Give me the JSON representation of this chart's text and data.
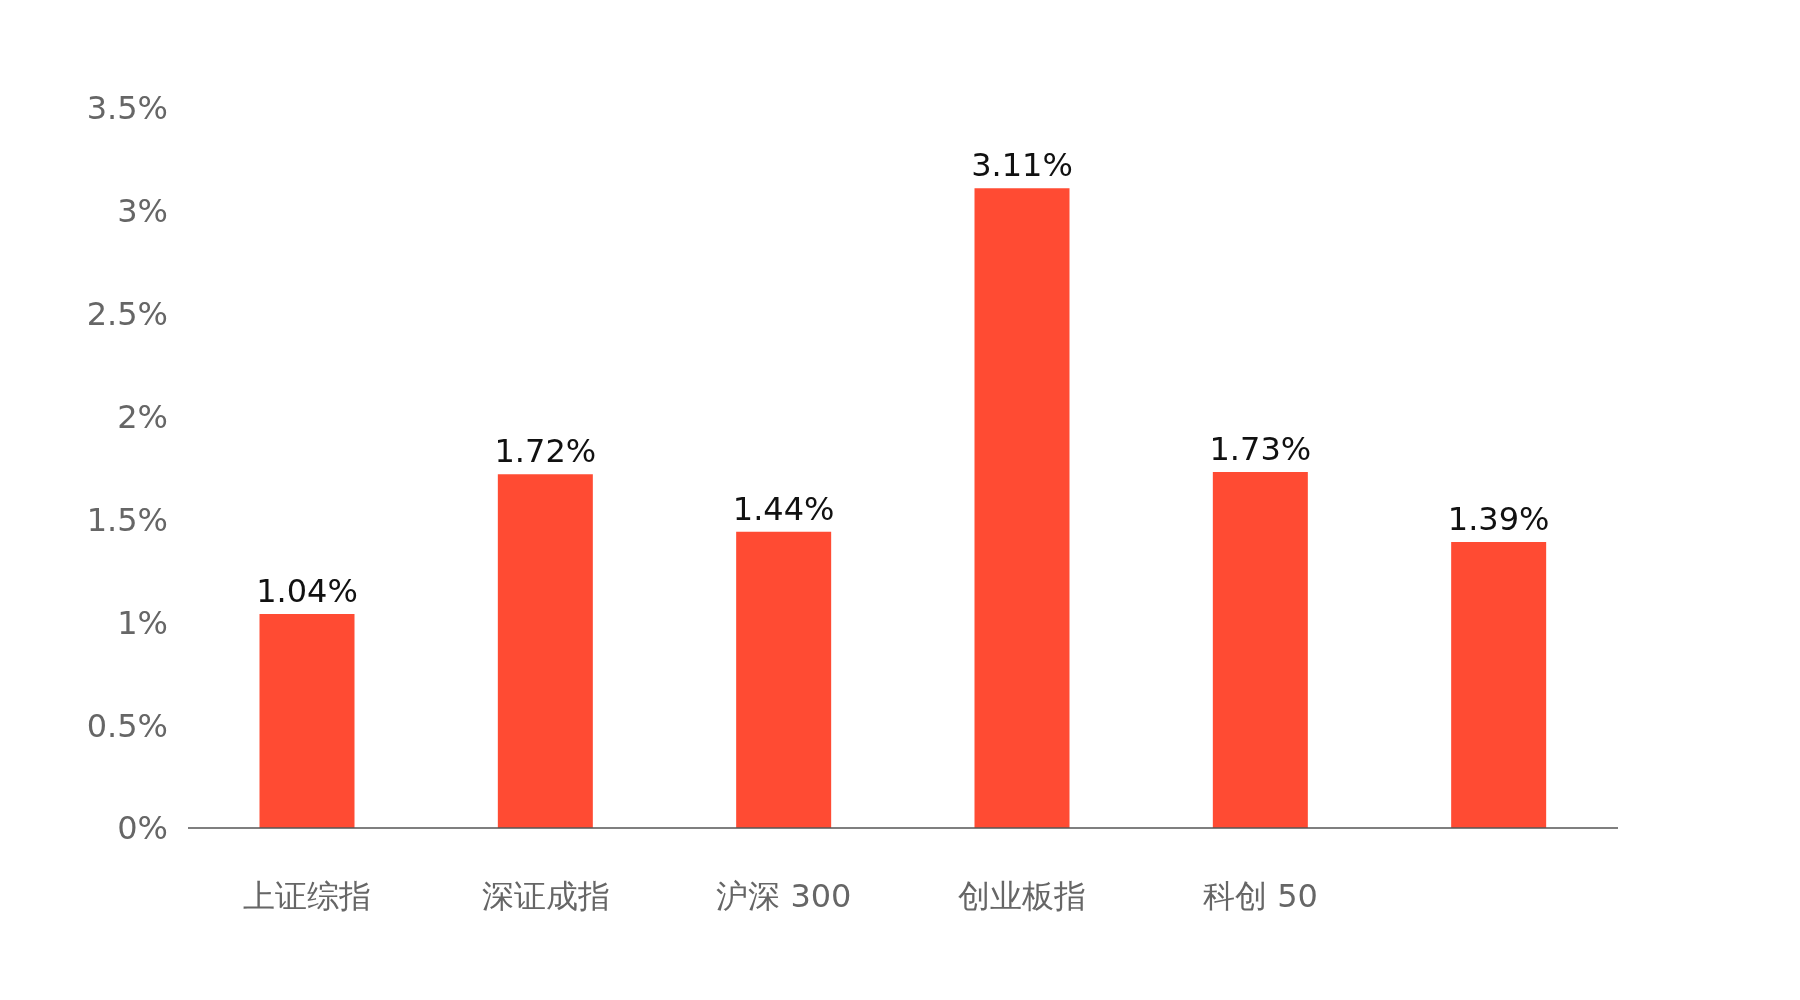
{
  "chart_data": {
    "type": "bar",
    "categories": [
      "上证综指",
      "深证成指",
      "沪深 300",
      "创业板指",
      "科创 50",
      null
    ],
    "values": [
      1.04,
      1.72,
      1.44,
      3.11,
      1.73,
      1.39
    ],
    "value_labels": [
      "1.04%",
      "1.72%",
      "1.44%",
      "3.11%",
      "1.73%",
      "1.39%"
    ],
    "color": "#ff4b33",
    "ylim": [
      0,
      3.5
    ],
    "yticks": [
      {
        "value": 0,
        "label": "0%"
      },
      {
        "value": 0.5,
        "label": "0.5%"
      },
      {
        "value": 1,
        "label": "1%"
      },
      {
        "value": 1.5,
        "label": "1.5%"
      },
      {
        "value": 2,
        "label": "2%"
      },
      {
        "value": 2.5,
        "label": "2.5%"
      },
      {
        "value": 3,
        "label": "3%"
      },
      {
        "value": 3.5,
        "label": "3.5%"
      }
    ],
    "grid": false,
    "legend": false
  }
}
